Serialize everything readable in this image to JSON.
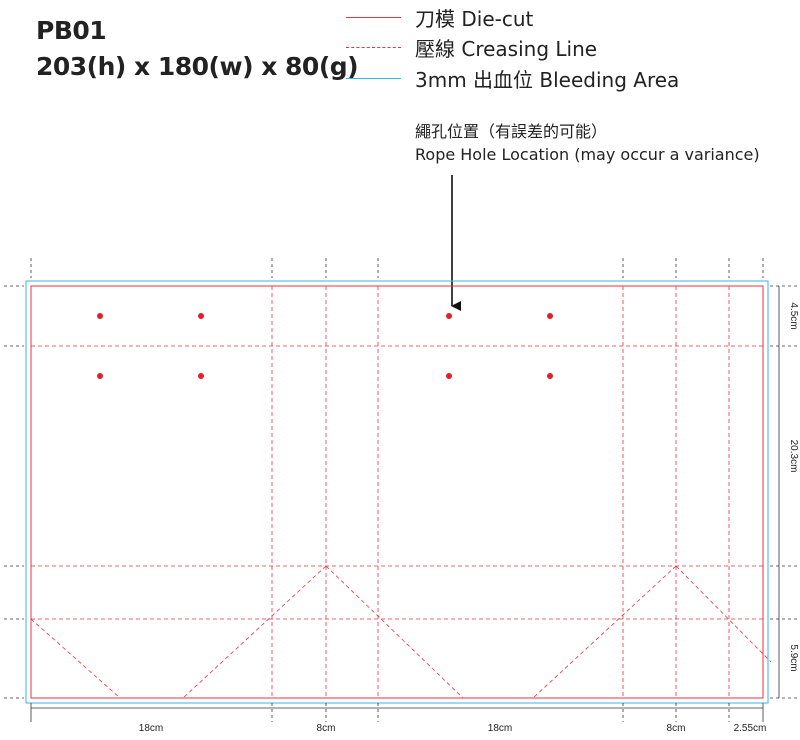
{
  "header": {
    "model": "PB01",
    "size": "203(h) x 180(w) x 80(g)"
  },
  "legend": [
    {
      "label": "刀模  Die-cut",
      "color": "#e8363f",
      "style": "solid"
    },
    {
      "label": "壓線  Creasing Line",
      "color": "#e8363f",
      "style": "dashed"
    },
    {
      "label": "3mm 出血位 Bleeding Area",
      "color": "#35b6e6",
      "style": "solid"
    }
  ],
  "note": {
    "line1": "繩孔位置（有誤差的可能）",
    "line2": "Rope Hole Location (may occur a variance)"
  },
  "dimensions": {
    "horizontal": [
      "18cm",
      "8cm",
      "18cm",
      "8cm",
      "2.55cm"
    ],
    "vertical": [
      "4.5cm",
      "20.3cm",
      "5.9cm"
    ]
  },
  "colors": {
    "die_cut": "#e8363f",
    "crease": "#e8363f",
    "bleed": "#35b6e6",
    "rope_hole": "#e31e24"
  },
  "rope_holes": 8
}
